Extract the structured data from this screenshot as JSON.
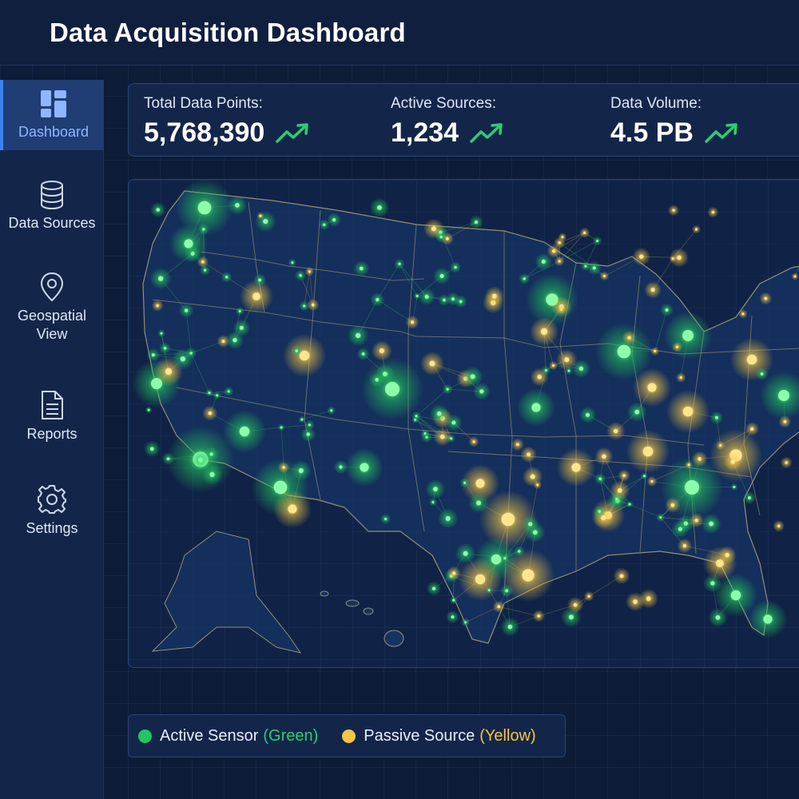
{
  "app": {
    "title": "Data Acquisition Dashboard"
  },
  "sidebar": {
    "items": [
      {
        "label": "Dashboard",
        "icon": "dashboard-grid-icon",
        "active": true
      },
      {
        "label": "Data Sources",
        "icon": "database-icon",
        "active": false
      },
      {
        "label": "Geospatial View",
        "icon": "map-pin-icon",
        "active": false
      },
      {
        "label": "Reports",
        "icon": "document-icon",
        "active": false
      },
      {
        "label": "Settings",
        "icon": "gear-icon",
        "active": false
      }
    ]
  },
  "stats": [
    {
      "label": "Total Data Points:",
      "value": "5,768,390",
      "trend": "trending-up-icon"
    },
    {
      "label": "Active Sources:",
      "value": "1,234",
      "trend": "trending-up-icon"
    },
    {
      "label": "Data Volume:",
      "value": "4.5 PB",
      "trend": "trending-up-icon"
    }
  ],
  "legend": {
    "active_label": "Active Sensor",
    "active_color_name": "(Green)",
    "passive_label": "Passive Source",
    "passive_color_name": "(Yellow)"
  },
  "colors": {
    "active": "#22c55e",
    "passive": "#f5c542",
    "accent": "#3d82f0",
    "trend": "#2ecc71"
  }
}
